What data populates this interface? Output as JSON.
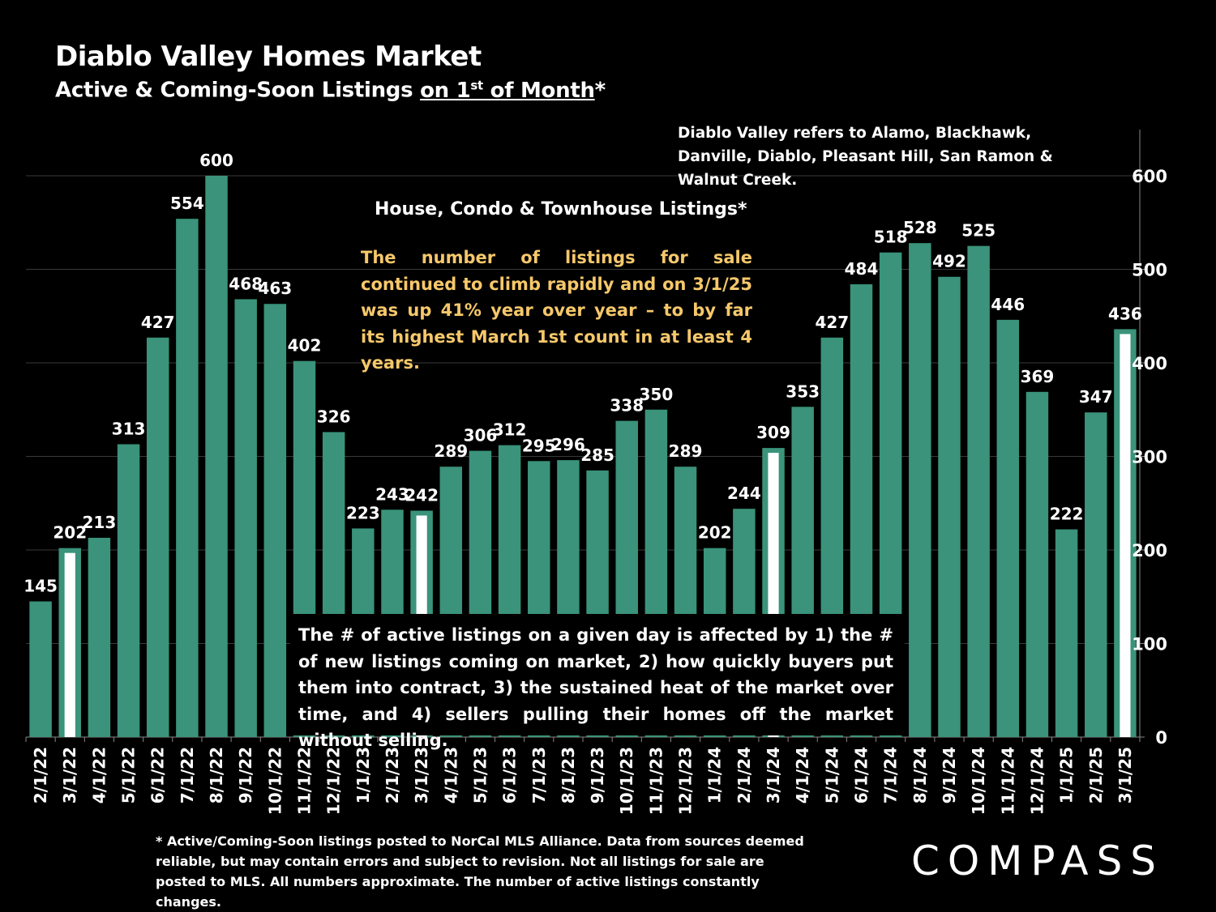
{
  "header": {
    "title": "Diablo Valley Homes Market",
    "subtitle_pre": "Active & Coming-Soon Listings ",
    "subtitle_ul_1": "on 1",
    "subtitle_sup": "st",
    "subtitle_ul_2": " of Month",
    "subtitle_post": "*"
  },
  "notes": {
    "region": "Diablo Valley refers to Alamo, Blackhawk, Danville, Diablo, Pleasant Hill, San Ramon & Walnut Creek.",
    "series_label": "House, Condo & Townhouse Listings*",
    "highlight": "The number of listings for sale continued to climb rapidly and on 3/1/25 was up 41% year over year – to by far its highest March 1st count in at least 4 years.",
    "explanation": "The # of active listings on a given day is affected by 1) the # of new listings coming on market, 2) how quickly buyers put them into contract, 3) the sustained heat of the market over time, and 4) sellers pulling their homes off the market without selling.",
    "footnote": "* Active/Coming-Soon listings posted to NorCal MLS Alliance.  Data from sources deemed reliable, but may contain errors and subject to revision.  Not all listings for sale are posted to MLS. All numbers approximate. The number of active listings constantly changes."
  },
  "branding": {
    "logo": "COMPASS"
  },
  "colors": {
    "background": "#000000",
    "bar": "#3a937a",
    "highlight_stripe": "#ffffff",
    "note_text": "#f6c86a",
    "grid": "#3a3a3a"
  },
  "chart_data": {
    "type": "bar",
    "categories": [
      "2/1/22",
      "3/1/22",
      "4/1/22",
      "5/1/22",
      "6/1/22",
      "7/1/22",
      "8/1/22",
      "9/1/22",
      "10/1/22",
      "11/1/22",
      "12/1/22",
      "1/1/23",
      "2/1/23",
      "3/1/23",
      "4/1/23",
      "5/1/23",
      "6/1/23",
      "7/1/23",
      "8/1/23",
      "9/1/23",
      "10/1/23",
      "11/1/23",
      "12/1/23",
      "1/1/24",
      "2/1/24",
      "3/1/24",
      "4/1/24",
      "5/1/24",
      "6/1/24",
      "7/1/24",
      "8/1/24",
      "9/1/24",
      "10/1/24",
      "11/1/24",
      "12/1/24",
      "1/1/25",
      "2/1/25",
      "3/1/25"
    ],
    "values": [
      145,
      202,
      213,
      313,
      427,
      554,
      600,
      468,
      463,
      402,
      326,
      223,
      243,
      242,
      289,
      306,
      312,
      295,
      296,
      285,
      338,
      350,
      289,
      202,
      244,
      309,
      353,
      427,
      484,
      518,
      528,
      492,
      525,
      446,
      369,
      222,
      347,
      436
    ],
    "highlighted_categories": [
      "3/1/22",
      "3/1/23",
      "3/1/24",
      "3/1/25"
    ],
    "ylim": [
      0,
      650
    ],
    "yticks": [
      0,
      100,
      200,
      300,
      400,
      500,
      600
    ],
    "y_axis_side": "right",
    "grid": true,
    "title": "Diablo Valley Homes Market",
    "xlabel": "",
    "ylabel": ""
  }
}
